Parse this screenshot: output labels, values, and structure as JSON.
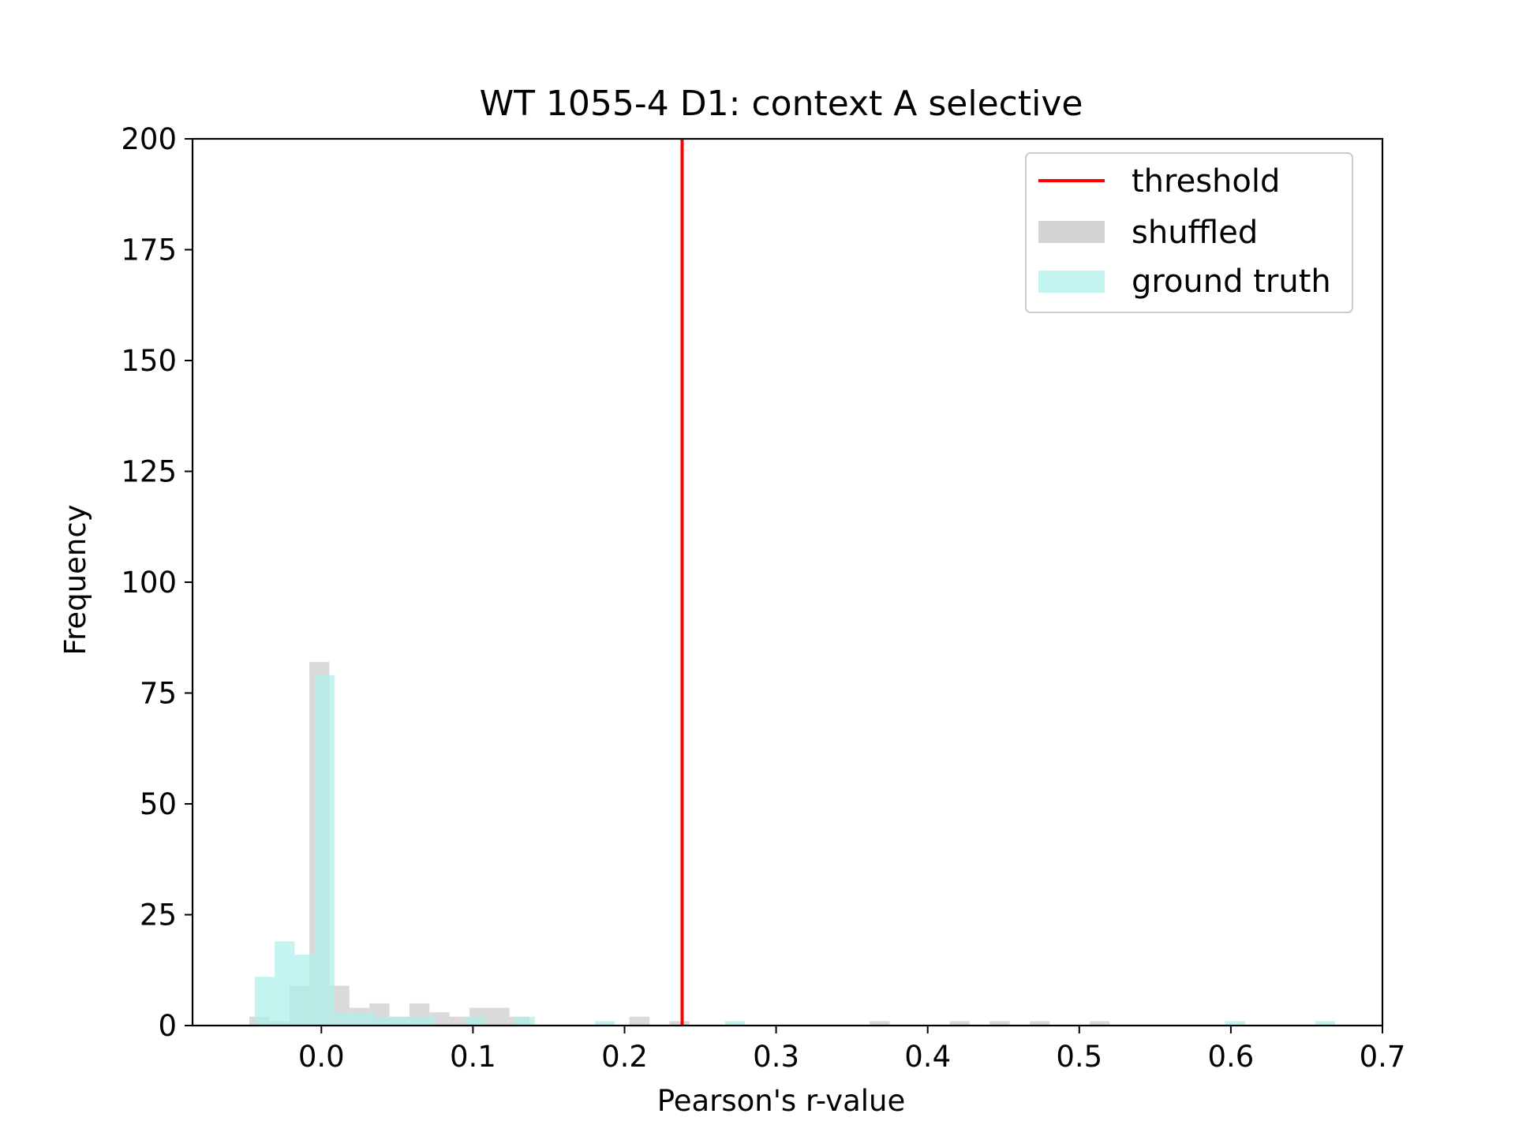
{
  "chart_data": {
    "type": "histogram",
    "title": "WT 1055-4 D1: context A selective",
    "xlabel": "Pearson's r-value",
    "ylabel": "Frequency",
    "xlim": [
      -0.085,
      0.7
    ],
    "ylim": [
      0,
      200
    ],
    "xticks": [
      "0.0",
      "0.1",
      "0.2",
      "0.3",
      "0.4",
      "0.5",
      "0.6",
      "0.7"
    ],
    "yticks": [
      "0",
      "25",
      "50",
      "75",
      "100",
      "125",
      "150",
      "175",
      "200"
    ],
    "threshold": 0.238,
    "legend": {
      "placement": "upper-right",
      "entries": [
        "threshold",
        "shuffled",
        "ground truth"
      ]
    },
    "colors": {
      "threshold": "#ff0000",
      "shuffled": "#d3d3d3",
      "ground_truth": "#aff0ea"
    },
    "series": [
      {
        "name": "shuffled",
        "bin_width": 0.0132,
        "bins": [
          {
            "x0": -0.0475,
            "count": 2
          },
          {
            "x0": -0.0343,
            "count": 1
          },
          {
            "x0": -0.0211,
            "count": 9
          },
          {
            "x0": -0.0079,
            "count": 82
          },
          {
            "x0": 0.0053,
            "count": 9
          },
          {
            "x0": 0.0185,
            "count": 4
          },
          {
            "x0": 0.0317,
            "count": 5
          },
          {
            "x0": 0.0449,
            "count": 2
          },
          {
            "x0": 0.0581,
            "count": 5
          },
          {
            "x0": 0.0713,
            "count": 3
          },
          {
            "x0": 0.0845,
            "count": 2
          },
          {
            "x0": 0.0977,
            "count": 4
          },
          {
            "x0": 0.1109,
            "count": 4
          },
          {
            "x0": 0.1241,
            "count": 2
          },
          {
            "x0": 0.2033,
            "count": 2
          },
          {
            "x0": 0.2297,
            "count": 1
          },
          {
            "x0": 0.3617,
            "count": 1
          },
          {
            "x0": 0.4145,
            "count": 1
          },
          {
            "x0": 0.4409,
            "count": 1
          },
          {
            "x0": 0.4673,
            "count": 1
          },
          {
            "x0": 0.5069,
            "count": 1
          }
        ]
      },
      {
        "name": "ground truth",
        "bin_width": 0.0132,
        "bins": [
          {
            "x0": -0.044,
            "count": 11
          },
          {
            "x0": -0.0308,
            "count": 19
          },
          {
            "x0": -0.0176,
            "count": 16
          },
          {
            "x0": -0.0044,
            "count": 79
          },
          {
            "x0": 0.0088,
            "count": 3
          },
          {
            "x0": 0.022,
            "count": 3
          },
          {
            "x0": 0.0352,
            "count": 2
          },
          {
            "x0": 0.0484,
            "count": 2
          },
          {
            "x0": 0.0616,
            "count": 2
          },
          {
            "x0": 0.0946,
            "count": 2
          },
          {
            "x0": 0.1276,
            "count": 2
          },
          {
            "x0": 0.1804,
            "count": 1
          },
          {
            "x0": 0.2662,
            "count": 1
          },
          {
            "x0": 0.5962,
            "count": 1
          },
          {
            "x0": 0.6556,
            "count": 1
          }
        ]
      }
    ]
  }
}
